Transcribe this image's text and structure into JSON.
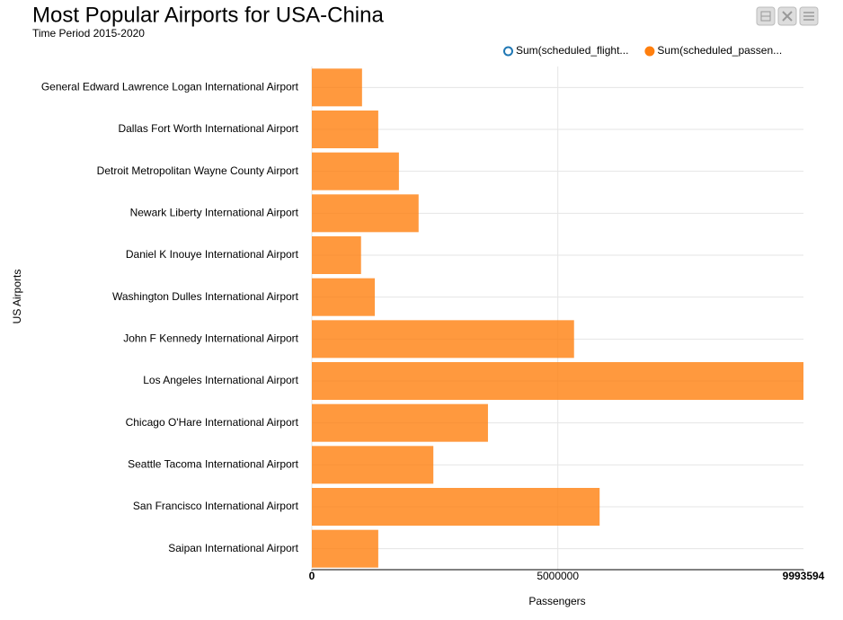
{
  "chart_data": {
    "type": "barh",
    "title": "Most Popular Airports for USA-China",
    "subtitle": "Time Period 2015-2020",
    "y_label": "US Airports",
    "x_label": "Passengers",
    "legend": [
      {
        "label": "Sum(scheduled_flight...",
        "color": "#1f77b4",
        "active": false
      },
      {
        "label": "Sum(scheduled_passen...",
        "color": "#ff7f0e",
        "active": true
      }
    ],
    "categories": [
      "General Edward Lawrence Logan International Airport",
      "Dallas Fort Worth International Airport",
      "Detroit Metropolitan Wayne County Airport",
      "Newark Liberty International Airport",
      "Daniel K Inouye International Airport",
      "Washington Dulles International Airport",
      "John F Kennedy International Airport",
      "Los Angeles International Airport",
      "Chicago O'Hare International Airport",
      "Seattle Tacoma International Airport",
      "San Francisco International Airport",
      "Saipan International Airport"
    ],
    "series": [
      {
        "name": "Sum(scheduled_passen...",
        "color": "#ff7f0e",
        "values": [
          1020000,
          1350000,
          1770000,
          2170000,
          1000000,
          1280000,
          5330000,
          9993594,
          3580000,
          2470000,
          5850000,
          1350000
        ]
      }
    ],
    "xlim": [
      0,
      9993594
    ],
    "xticks": [
      0,
      5000000,
      9993594
    ],
    "grid": true
  }
}
